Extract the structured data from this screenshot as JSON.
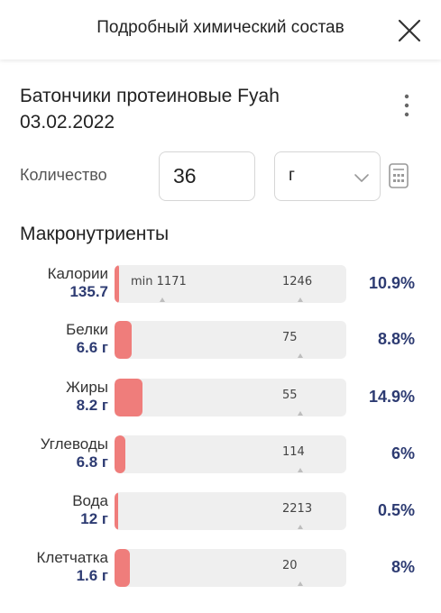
{
  "header": {
    "title": "Подробный химический состав",
    "close_icon": "close-icon"
  },
  "product": {
    "title_line1": "Батончики протеиновые Fyah",
    "title_line2": "03.02.2022",
    "more_icon": "more-vertical-icon"
  },
  "quantity": {
    "label": "Количество",
    "value": "36",
    "unit": "г",
    "calc_icon": "calculator-icon"
  },
  "macros": {
    "title": "Макронутриенты",
    "items": [
      {
        "name": "Калории",
        "amount": "135.7",
        "min_label": "min 1171",
        "max_label": "1246",
        "percent": "10.9%",
        "fill_fraction": 0.02
      },
      {
        "name": "Белки",
        "amount": "6.6 г",
        "min_label": "",
        "max_label": "75",
        "percent": "8.8%",
        "fill_fraction": 0.075
      },
      {
        "name": "Жиры",
        "amount": "8.2 г",
        "min_label": "",
        "max_label": "55",
        "percent": "14.9%",
        "fill_fraction": 0.12
      },
      {
        "name": "Углеводы",
        "amount": "6.8 г",
        "min_label": "",
        "max_label": "114",
        "percent": "6%",
        "fill_fraction": 0.045
      },
      {
        "name": "Вода",
        "amount": "12 г",
        "min_label": "",
        "max_label": "2213",
        "percent": "0.5%",
        "fill_fraction": 0.006
      },
      {
        "name": "Клетчатка",
        "amount": "1.6 г",
        "min_label": "",
        "max_label": "20",
        "percent": "8%",
        "fill_fraction": 0.065
      }
    ]
  },
  "colors": {
    "bar_fill": "#ef7d7b",
    "bar_track": "#efefef",
    "accent_text": "#2d3b72"
  }
}
